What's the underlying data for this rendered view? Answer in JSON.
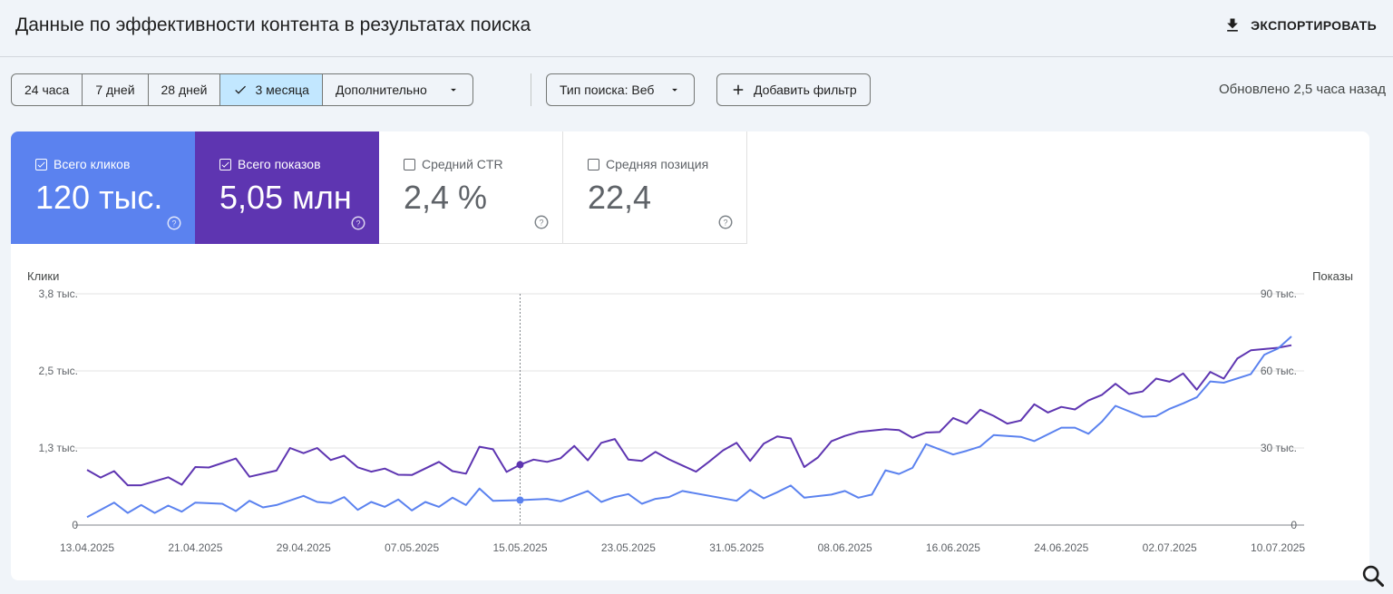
{
  "header": {
    "title": "Данные по эффективности контента в результатах поиска",
    "export_label": "ЭКСПОРТИРОВАТЬ"
  },
  "toolbar": {
    "ranges": [
      {
        "label": "24 часа",
        "active": false
      },
      {
        "label": "7 дней",
        "active": false
      },
      {
        "label": "28 дней",
        "active": false
      },
      {
        "label": "3 месяца",
        "active": true
      },
      {
        "label": "Дополнительно",
        "active": false
      }
    ],
    "search_type_label": "Тип поиска: Веб",
    "add_filter_label": "Добавить фильтр",
    "updated_text": "Обновлено 2,5 часа назад"
  },
  "metrics": {
    "clicks": {
      "label": "Всего кликов",
      "value": "120 тыс.",
      "checked": true,
      "color": "#5b82ef"
    },
    "impressions": {
      "label": "Всего показов",
      "value": "5,05 млн",
      "checked": true,
      "color": "#5e35b1"
    },
    "ctr": {
      "label": "Средний CTR",
      "value": "2,4 %",
      "checked": false
    },
    "position": {
      "label": "Средняя позиция",
      "value": "22,4",
      "checked": false
    }
  },
  "chart_data": {
    "type": "line",
    "left_axis_label": "Клики",
    "right_axis_label": "Показы",
    "left_ticks": [
      "0",
      "1,3 тыс.",
      "2,5 тыс.",
      "3,8 тыс."
    ],
    "right_ticks": [
      "0",
      "30 тыс.",
      "60 тыс.",
      "90 тыс."
    ],
    "ylim_left": [
      0,
      3800
    ],
    "ylim_right": [
      0,
      90000
    ],
    "x_ticks": [
      "13.04.2025",
      "21.04.2025",
      "29.04.2025",
      "07.05.2025",
      "15.05.2025",
      "23.05.2025",
      "31.05.2025",
      "08.06.2025",
      "16.06.2025",
      "24.06.2025",
      "02.07.2025",
      "10.07.2025"
    ],
    "x_start": "13.04.2025",
    "x_end": "11.07.2025",
    "hover_date": "15.05.2025",
    "grid": true,
    "series": [
      {
        "name": "Клики",
        "axis": "left",
        "color": "#5b82ef",
        "x": [
          "13.04.2025",
          "15.04.2025",
          "16.04.2025",
          "17.04.2025",
          "18.04.2025",
          "19.04.2025",
          "20.04.2025",
          "21.04.2025",
          "23.04.2025",
          "24.04.2025",
          "25.04.2025",
          "26.04.2025",
          "27.04.2025",
          "29.04.2025",
          "30.04.2025",
          "01.05.2025",
          "02.05.2025",
          "03.05.2025",
          "04.05.2025",
          "05.05.2025",
          "06.05.2025",
          "07.05.2025",
          "08.05.2025",
          "09.05.2025",
          "10.05.2025",
          "11.05.2025",
          "12.05.2025",
          "13.05.2025",
          "15.05.2025",
          "17.05.2025",
          "18.05.2025",
          "20.05.2025",
          "21.05.2025",
          "22.05.2025",
          "23.05.2025",
          "24.05.2025",
          "25.05.2025",
          "26.05.2025",
          "27.05.2025",
          "31.05.2025",
          "01.06.2025",
          "02.06.2025",
          "03.06.2025",
          "04.06.2025",
          "05.06.2025",
          "07.06.2025",
          "08.06.2025",
          "09.06.2025",
          "10.06.2025",
          "11.06.2025",
          "12.06.2025",
          "13.06.2025",
          "14.06.2025",
          "16.06.2025",
          "17.06.2025",
          "18.06.2025",
          "19.06.2025",
          "21.06.2025",
          "22.06.2025",
          "24.06.2025",
          "25.06.2025",
          "26.06.2025",
          "27.06.2025",
          "28.06.2025",
          "30.06.2025",
          "01.07.2025",
          "02.07.2025",
          "03.07.2025",
          "04.07.2025",
          "05.07.2025",
          "06.07.2025",
          "08.07.2025",
          "09.07.2025",
          "10.07.2025",
          "11.07.2025"
        ],
        "values": [
          130,
          370,
          200,
          330,
          200,
          320,
          220,
          370,
          350,
          230,
          400,
          290,
          330,
          480,
          380,
          360,
          460,
          250,
          380,
          300,
          420,
          240,
          380,
          300,
          450,
          330,
          600,
          400,
          410,
          430,
          390,
          560,
          380,
          460,
          510,
          350,
          430,
          460,
          560,
          400,
          580,
          440,
          540,
          650,
          450,
          500,
          560,
          450,
          500,
          900,
          840,
          940,
          1330,
          1160,
          1220,
          1290,
          1480,
          1450,
          1380,
          1600,
          1600,
          1500,
          1700,
          1960,
          1780,
          1790,
          1910,
          2000,
          2100,
          2360,
          2340,
          2480,
          2800,
          2900,
          3100
        ]
      },
      {
        "name": "Показы",
        "axis": "right",
        "color": "#5e35b1",
        "x": [
          "13.04.2025",
          "14.04.2025",
          "15.04.2025",
          "16.04.2025",
          "17.04.2025",
          "19.04.2025",
          "20.04.2025",
          "21.04.2025",
          "22.04.2025",
          "24.04.2025",
          "25.04.2025",
          "27.04.2025",
          "28.04.2025",
          "29.04.2025",
          "30.04.2025",
          "01.05.2025",
          "02.05.2025",
          "03.05.2025",
          "04.05.2025",
          "05.05.2025",
          "06.05.2025",
          "07.05.2025",
          "09.05.2025",
          "10.05.2025",
          "11.05.2025",
          "12.05.2025",
          "13.05.2025",
          "14.05.2025",
          "15.05.2025",
          "16.05.2025",
          "17.05.2025",
          "18.05.2025",
          "19.05.2025",
          "20.05.2025",
          "21.05.2025",
          "22.05.2025",
          "23.05.2025",
          "24.05.2025",
          "25.05.2025",
          "26.05.2025",
          "27.05.2025",
          "28.05.2025",
          "29.05.2025",
          "30.05.2025",
          "31.05.2025",
          "01.06.2025",
          "02.06.2025",
          "03.06.2025",
          "04.06.2025",
          "05.06.2025",
          "06.06.2025",
          "07.06.2025",
          "08.06.2025",
          "09.06.2025",
          "11.06.2025",
          "12.06.2025",
          "13.06.2025",
          "14.06.2025",
          "15.06.2025",
          "16.06.2025",
          "17.06.2025",
          "18.06.2025",
          "19.06.2025",
          "20.06.2025",
          "21.06.2025",
          "22.06.2025",
          "23.06.2025",
          "24.06.2025",
          "25.06.2025",
          "26.06.2025",
          "27.06.2025",
          "28.06.2025",
          "29.06.2025",
          "30.06.2025",
          "01.07.2025",
          "02.07.2025",
          "03.07.2025",
          "04.07.2025",
          "05.07.2025",
          "06.07.2025",
          "07.07.2025",
          "08.07.2025",
          "09.07.2025",
          "10.07.2025",
          "11.07.2025"
        ],
        "values": [
          21500,
          18500,
          21000,
          15500,
          15500,
          18600,
          15700,
          22600,
          22400,
          25900,
          18800,
          21200,
          30000,
          28000,
          30000,
          25300,
          27000,
          22500,
          20800,
          22000,
          19600,
          19500,
          24600,
          21000,
          20000,
          30500,
          29500,
          20700,
          23500,
          25500,
          24600,
          26000,
          30800,
          25200,
          32000,
          33500,
          25500,
          25000,
          28500,
          25600,
          23200,
          20800,
          24800,
          29100,
          32000,
          25000,
          31700,
          34500,
          33700,
          22600,
          26300,
          32600,
          34700,
          36200,
          37300,
          37000,
          34000,
          36000,
          36200,
          41700,
          39500,
          44900,
          42500,
          39500,
          40700,
          47000,
          43800,
          46000,
          45000,
          48500,
          50700,
          55000,
          51000,
          52000,
          57000,
          55800,
          59000,
          52700,
          59600,
          57000,
          64800,
          68000,
          68500,
          69000,
          70000
        ]
      }
    ]
  }
}
